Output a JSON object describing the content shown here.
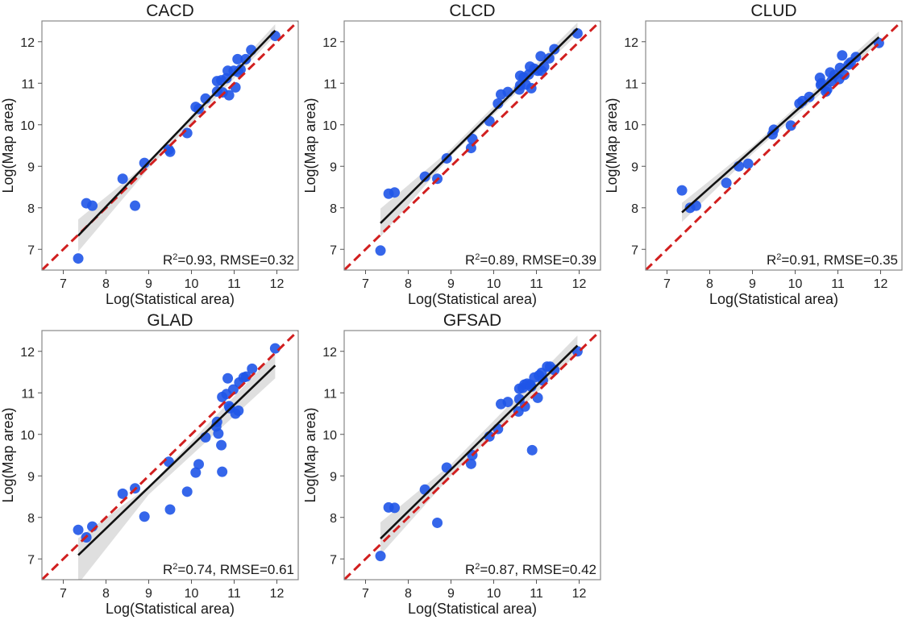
{
  "chart_data": [
    {
      "type": "scatter",
      "title": "CACD",
      "xlabel": "Log(Statistical area)",
      "ylabel": "Log(Map area)",
      "xlim": [
        6.5,
        12.5
      ],
      "ylim": [
        6.5,
        12.5
      ],
      "xticks": [
        "7",
        "8",
        "9",
        "10",
        "11",
        "12"
      ],
      "yticks": [
        "7",
        "8",
        "9",
        "10",
        "11",
        "12"
      ],
      "annotation": {
        "r2_prefix": "R",
        "r2_sup": "2",
        "text": "=0.93, RMSE=0.32"
      },
      "fit_line": {
        "x0": 7.35,
        "y0": 7.33,
        "x1": 11.96,
        "y1": 12.27
      },
      "ci_band": {
        "lower": [
          [
            7.35,
            6.95
          ],
          [
            9.0,
            8.95
          ],
          [
            11.96,
            12.15
          ]
        ],
        "upper": [
          [
            7.35,
            7.72
          ],
          [
            9.0,
            9.1
          ],
          [
            11.96,
            12.42
          ]
        ]
      },
      "identity_line": true,
      "points": [
        [
          7.35,
          6.78
        ],
        [
          7.54,
          8.11
        ],
        [
          7.68,
          8.05
        ],
        [
          8.39,
          8.7
        ],
        [
          8.68,
          8.05
        ],
        [
          8.9,
          9.08
        ],
        [
          9.47,
          9.4
        ],
        [
          9.5,
          9.35
        ],
        [
          9.9,
          9.8
        ],
        [
          10.1,
          10.43
        ],
        [
          10.17,
          10.38
        ],
        [
          10.33,
          10.63
        ],
        [
          10.6,
          11.05
        ],
        [
          10.6,
          10.8
        ],
        [
          10.7,
          11.07
        ],
        [
          10.73,
          10.78
        ],
        [
          10.82,
          11.12
        ],
        [
          10.88,
          10.71
        ],
        [
          10.85,
          11.3
        ],
        [
          10.99,
          11.3
        ],
        [
          11.03,
          10.9
        ],
        [
          11.08,
          11.58
        ],
        [
          11.1,
          11.27
        ],
        [
          11.15,
          11.33
        ],
        [
          11.27,
          11.58
        ],
        [
          11.4,
          11.8
        ],
        [
          11.96,
          12.14
        ]
      ]
    },
    {
      "type": "scatter",
      "title": "CLCD",
      "xlabel": "Log(Statistical area)",
      "ylabel": "Log(Map area)",
      "xlim": [
        6.5,
        12.5
      ],
      "ylim": [
        6.5,
        12.5
      ],
      "xticks": [
        "7",
        "8",
        "9",
        "10",
        "11",
        "12"
      ],
      "yticks": [
        "7",
        "8",
        "9",
        "10",
        "11",
        "12"
      ],
      "annotation": {
        "r2_prefix": "R",
        "r2_sup": "2",
        "text": "=0.89, RMSE=0.39"
      },
      "fit_line": {
        "x0": 7.35,
        "y0": 7.63,
        "x1": 11.96,
        "y1": 12.32
      },
      "ci_band": {
        "lower": [
          [
            7.35,
            7.3
          ],
          [
            9.0,
            9.25
          ],
          [
            11.96,
            12.18
          ]
        ],
        "upper": [
          [
            7.35,
            7.98
          ],
          [
            9.0,
            9.42
          ],
          [
            11.96,
            12.46
          ]
        ]
      },
      "identity_line": true,
      "points": [
        [
          7.35,
          6.97
        ],
        [
          7.54,
          8.34
        ],
        [
          7.68,
          8.37
        ],
        [
          8.39,
          8.75
        ],
        [
          8.68,
          8.7
        ],
        [
          8.9,
          9.19
        ],
        [
          9.47,
          9.44
        ],
        [
          9.5,
          9.66
        ],
        [
          9.9,
          10.09
        ],
        [
          10.1,
          10.51
        ],
        [
          10.17,
          10.73
        ],
        [
          10.33,
          10.79
        ],
        [
          10.6,
          10.85
        ],
        [
          10.62,
          10.95
        ],
        [
          10.62,
          11.18
        ],
        [
          10.7,
          11.14
        ],
        [
          10.75,
          10.97
        ],
        [
          10.82,
          11.21
        ],
        [
          10.85,
          11.4
        ],
        [
          10.88,
          10.88
        ],
        [
          10.95,
          11.35
        ],
        [
          11.03,
          11.3
        ],
        [
          11.1,
          11.65
        ],
        [
          11.12,
          11.3
        ],
        [
          11.18,
          11.4
        ],
        [
          11.3,
          11.6
        ],
        [
          11.42,
          11.82
        ],
        [
          11.96,
          12.2
        ]
      ]
    },
    {
      "type": "scatter",
      "title": "CLUD",
      "xlabel": "Log(Statistical area)",
      "ylabel": "Log(Map area)",
      "xlim": [
        6.5,
        12.5
      ],
      "ylim": [
        6.5,
        12.5
      ],
      "xticks": [
        "7",
        "8",
        "9",
        "10",
        "11",
        "12"
      ],
      "yticks": [
        "7",
        "8",
        "9",
        "10",
        "11",
        "12"
      ],
      "annotation": {
        "r2_prefix": "R",
        "r2_sup": "2",
        "text": "=0.91, RMSE=0.35"
      },
      "fit_line": {
        "x0": 7.35,
        "y0": 7.89,
        "x1": 11.96,
        "y1": 12.11
      },
      "ci_band": {
        "lower": [
          [
            7.35,
            7.66
          ],
          [
            9.0,
            9.3
          ],
          [
            11.96,
            11.98
          ]
        ],
        "upper": [
          [
            7.35,
            8.12
          ],
          [
            9.0,
            9.48
          ],
          [
            11.96,
            12.25
          ]
        ]
      },
      "identity_line": true,
      "points": [
        [
          7.35,
          8.42
        ],
        [
          7.54,
          8.0
        ],
        [
          7.68,
          8.05
        ],
        [
          8.39,
          8.6
        ],
        [
          8.68,
          9.0
        ],
        [
          8.9,
          9.06
        ],
        [
          9.47,
          9.77
        ],
        [
          9.5,
          9.88
        ],
        [
          9.9,
          9.98
        ],
        [
          10.1,
          10.51
        ],
        [
          10.17,
          10.57
        ],
        [
          10.33,
          10.67
        ],
        [
          10.58,
          11.13
        ],
        [
          10.6,
          10.96
        ],
        [
          10.62,
          11.0
        ],
        [
          10.72,
          10.8
        ],
        [
          10.75,
          10.85
        ],
        [
          10.82,
          11.26
        ],
        [
          10.85,
          11.05
        ],
        [
          10.92,
          11.2
        ],
        [
          11.03,
          11.1
        ],
        [
          11.05,
          11.37
        ],
        [
          11.1,
          11.67
        ],
        [
          11.15,
          11.2
        ],
        [
          11.25,
          11.45
        ],
        [
          11.3,
          11.5
        ],
        [
          11.42,
          11.63
        ],
        [
          11.96,
          11.97
        ]
      ]
    },
    {
      "type": "scatter",
      "title": "GLAD",
      "xlabel": "Log(Statistical area)",
      "ylabel": "Log(Map area)",
      "xlim": [
        6.5,
        12.5
      ],
      "ylim": [
        6.5,
        12.5
      ],
      "xticks": [
        "7",
        "8",
        "9",
        "10",
        "11",
        "12"
      ],
      "yticks": [
        "7",
        "8",
        "9",
        "10",
        "11",
        "12"
      ],
      "annotation": {
        "r2_prefix": "R",
        "r2_sup": "2",
        "text": "=0.74, RMSE=0.61"
      },
      "fit_line": {
        "x0": 7.35,
        "y0": 7.09,
        "x1": 11.96,
        "y1": 11.66
      },
      "ci_band": {
        "lower": [
          [
            7.35,
            6.4
          ],
          [
            9.0,
            8.55
          ],
          [
            11.96,
            11.35
          ]
        ],
        "upper": [
          [
            7.35,
            7.5
          ],
          [
            9.0,
            8.75
          ],
          [
            11.96,
            11.95
          ]
        ]
      },
      "identity_line": true,
      "points": [
        [
          7.35,
          7.7
        ],
        [
          7.54,
          7.52
        ],
        [
          7.68,
          7.78
        ],
        [
          8.39,
          8.57
        ],
        [
          8.68,
          8.7
        ],
        [
          8.9,
          8.02
        ],
        [
          9.47,
          9.34
        ],
        [
          9.5,
          8.19
        ],
        [
          9.9,
          8.62
        ],
        [
          10.1,
          9.08
        ],
        [
          10.17,
          9.28
        ],
        [
          10.33,
          9.93
        ],
        [
          10.58,
          10.19
        ],
        [
          10.6,
          10.3
        ],
        [
          10.63,
          10.02
        ],
        [
          10.7,
          9.74
        ],
        [
          10.72,
          9.1
        ],
        [
          10.72,
          10.9
        ],
        [
          10.82,
          10.97
        ],
        [
          10.85,
          11.35
        ],
        [
          10.88,
          10.68
        ],
        [
          10.9,
          10.63
        ],
        [
          10.98,
          11.08
        ],
        [
          11.03,
          10.5
        ],
        [
          11.1,
          10.57
        ],
        [
          11.12,
          11.25
        ],
        [
          11.22,
          11.37
        ],
        [
          11.28,
          11.39
        ],
        [
          11.42,
          11.58
        ],
        [
          11.96,
          12.07
        ]
      ]
    },
    {
      "type": "scatter",
      "title": "GFSAD",
      "xlabel": "Log(Statistical area)",
      "ylabel": "Log(Map area)",
      "xlim": [
        6.5,
        12.5
      ],
      "ylim": [
        6.5,
        12.5
      ],
      "xticks": [
        "7",
        "8",
        "9",
        "10",
        "11",
        "12"
      ],
      "yticks": [
        "7",
        "8",
        "9",
        "10",
        "11",
        "12"
      ],
      "annotation": {
        "r2_prefix": "R",
        "r2_sup": "2",
        "text": "=0.87, RMSE=0.42"
      },
      "fit_line": {
        "x0": 7.35,
        "y0": 7.49,
        "x1": 11.96,
        "y1": 12.14
      },
      "ci_band": {
        "lower": [
          [
            7.35,
            7.1
          ],
          [
            9.0,
            9.0
          ],
          [
            11.96,
            11.95
          ]
        ],
        "upper": [
          [
            7.35,
            7.88
          ],
          [
            9.0,
            9.28
          ],
          [
            11.96,
            12.38
          ]
        ]
      },
      "identity_line": true,
      "points": [
        [
          7.35,
          7.07
        ],
        [
          7.54,
          8.24
        ],
        [
          7.68,
          8.23
        ],
        [
          8.39,
          8.67
        ],
        [
          8.68,
          7.87
        ],
        [
          8.9,
          9.2
        ],
        [
          9.47,
          9.29
        ],
        [
          9.5,
          9.5
        ],
        [
          9.9,
          9.95
        ],
        [
          10.1,
          10.13
        ],
        [
          10.17,
          10.73
        ],
        [
          10.33,
          10.78
        ],
        [
          10.58,
          10.55
        ],
        [
          10.6,
          10.85
        ],
        [
          10.6,
          11.1
        ],
        [
          10.68,
          11.12
        ],
        [
          10.72,
          11.2
        ],
        [
          10.73,
          10.67
        ],
        [
          10.78,
          11.22
        ],
        [
          10.85,
          11.2
        ],
        [
          10.88,
          11.15
        ],
        [
          10.9,
          9.62
        ],
        [
          10.95,
          11.37
        ],
        [
          11.03,
          10.88
        ],
        [
          11.06,
          11.42
        ],
        [
          11.12,
          11.48
        ],
        [
          11.15,
          11.3
        ],
        [
          11.25,
          11.63
        ],
        [
          11.32,
          11.63
        ],
        [
          11.42,
          11.55
        ],
        [
          11.96,
          12.0
        ]
      ]
    }
  ]
}
